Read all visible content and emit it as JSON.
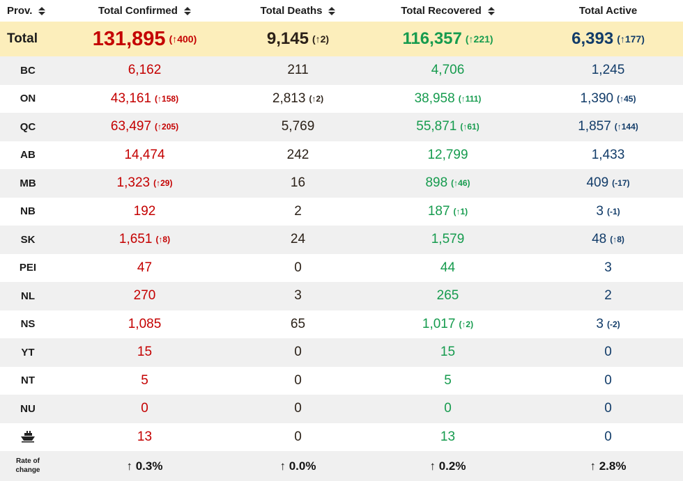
{
  "colors": {
    "confirmed": "#c40000",
    "deaths": "#2b2118",
    "recovered": "#169b4e",
    "active": "#123c69",
    "total_row_bg": "#fceebb",
    "stripe_bg": "#f0f0f0"
  },
  "chart_data": {
    "type": "table",
    "columns": [
      {
        "label": "Prov.",
        "sortable": true
      },
      {
        "label": "Total Confirmed",
        "sortable": true
      },
      {
        "label": "Total Deaths",
        "sortable": true
      },
      {
        "label": "Total Recovered",
        "sortable": true
      },
      {
        "label": "Total Active",
        "sortable": false
      }
    ],
    "total": {
      "label": "Total",
      "confirmed": {
        "value": "131,895",
        "delta": "(↑400)"
      },
      "deaths": {
        "value": "9,145",
        "delta": "(↑2)"
      },
      "recovered": {
        "value": "116,357",
        "delta": "(↑221)"
      },
      "active": {
        "value": "6,393",
        "delta": "(↑177)"
      }
    },
    "rows": [
      {
        "prov": "BC",
        "confirmed": {
          "value": "6,162",
          "delta": ""
        },
        "deaths": {
          "value": "211",
          "delta": ""
        },
        "recovered": {
          "value": "4,706",
          "delta": ""
        },
        "active": {
          "value": "1,245",
          "delta": ""
        }
      },
      {
        "prov": "ON",
        "confirmed": {
          "value": "43,161",
          "delta": "(↑158)"
        },
        "deaths": {
          "value": "2,813",
          "delta": "(↑2)"
        },
        "recovered": {
          "value": "38,958",
          "delta": "(↑111)"
        },
        "active": {
          "value": "1,390",
          "delta": "(↑45)"
        }
      },
      {
        "prov": "QC",
        "confirmed": {
          "value": "63,497",
          "delta": "(↑205)"
        },
        "deaths": {
          "value": "5,769",
          "delta": ""
        },
        "recovered": {
          "value": "55,871",
          "delta": "(↑61)"
        },
        "active": {
          "value": "1,857",
          "delta": "(↑144)"
        }
      },
      {
        "prov": "AB",
        "confirmed": {
          "value": "14,474",
          "delta": ""
        },
        "deaths": {
          "value": "242",
          "delta": ""
        },
        "recovered": {
          "value": "12,799",
          "delta": ""
        },
        "active": {
          "value": "1,433",
          "delta": ""
        }
      },
      {
        "prov": "MB",
        "confirmed": {
          "value": "1,323",
          "delta": "(↑29)"
        },
        "deaths": {
          "value": "16",
          "delta": ""
        },
        "recovered": {
          "value": "898",
          "delta": "(↑46)"
        },
        "active": {
          "value": "409",
          "delta": "(-17)"
        }
      },
      {
        "prov": "NB",
        "confirmed": {
          "value": "192",
          "delta": ""
        },
        "deaths": {
          "value": "2",
          "delta": ""
        },
        "recovered": {
          "value": "187",
          "delta": "(↑1)"
        },
        "active": {
          "value": "3",
          "delta": "(-1)"
        }
      },
      {
        "prov": "SK",
        "confirmed": {
          "value": "1,651",
          "delta": "(↑8)"
        },
        "deaths": {
          "value": "24",
          "delta": ""
        },
        "recovered": {
          "value": "1,579",
          "delta": ""
        },
        "active": {
          "value": "48",
          "delta": "(↑8)"
        }
      },
      {
        "prov": "PEI",
        "confirmed": {
          "value": "47",
          "delta": ""
        },
        "deaths": {
          "value": "0",
          "delta": ""
        },
        "recovered": {
          "value": "44",
          "delta": ""
        },
        "active": {
          "value": "3",
          "delta": ""
        }
      },
      {
        "prov": "NL",
        "confirmed": {
          "value": "270",
          "delta": ""
        },
        "deaths": {
          "value": "3",
          "delta": ""
        },
        "recovered": {
          "value": "265",
          "delta": ""
        },
        "active": {
          "value": "2",
          "delta": ""
        }
      },
      {
        "prov": "NS",
        "confirmed": {
          "value": "1,085",
          "delta": ""
        },
        "deaths": {
          "value": "65",
          "delta": ""
        },
        "recovered": {
          "value": "1,017",
          "delta": "(↑2)"
        },
        "active": {
          "value": "3",
          "delta": "(-2)"
        }
      },
      {
        "prov": "YT",
        "confirmed": {
          "value": "15",
          "delta": ""
        },
        "deaths": {
          "value": "0",
          "delta": ""
        },
        "recovered": {
          "value": "15",
          "delta": ""
        },
        "active": {
          "value": "0",
          "delta": ""
        }
      },
      {
        "prov": "NT",
        "confirmed": {
          "value": "5",
          "delta": ""
        },
        "deaths": {
          "value": "0",
          "delta": ""
        },
        "recovered": {
          "value": "5",
          "delta": ""
        },
        "active": {
          "value": "0",
          "delta": ""
        }
      },
      {
        "prov": "NU",
        "confirmed": {
          "value": "0",
          "delta": ""
        },
        "deaths": {
          "value": "0",
          "delta": ""
        },
        "recovered": {
          "value": "0",
          "delta": ""
        },
        "active": {
          "value": "0",
          "delta": ""
        }
      }
    ],
    "ship_row": {
      "icon": "ship-icon",
      "confirmed": {
        "value": "13",
        "delta": ""
      },
      "deaths": {
        "value": "0",
        "delta": ""
      },
      "recovered": {
        "value": "13",
        "delta": ""
      },
      "active": {
        "value": "0",
        "delta": ""
      }
    },
    "rate_of_change": {
      "label": "Rate of change",
      "confirmed": "↑ 0.3%",
      "deaths": "↑ 0.0%",
      "recovered": "↑ 0.2%",
      "active": "↑ 2.8%"
    }
  }
}
